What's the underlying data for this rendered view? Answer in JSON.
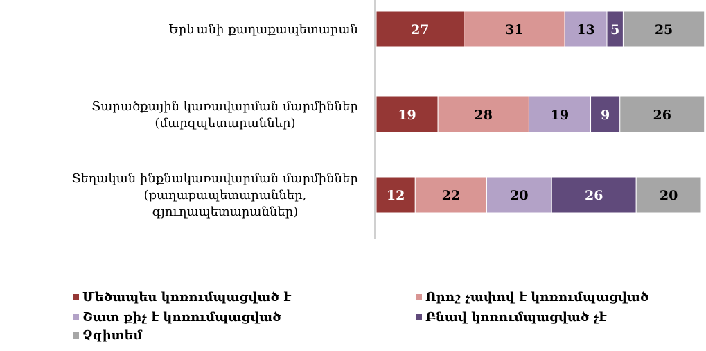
{
  "chart_data": {
    "type": "bar",
    "stacked": true,
    "percent": true,
    "orientation": "horizontal",
    "title": "",
    "xlabel": "",
    "ylabel": "",
    "xlim": [
      0,
      100
    ],
    "grid": false,
    "legend_position": "bottom",
    "categories": [
      [
        "Երևանի քաղաքապետարան"
      ],
      [
        "Տարածքային կառավարման մարմիններ",
        "(մարզպետարաններ)"
      ],
      [
        "Տեղական ինքնակառավարման մարմիններ",
        "(քաղաքապետարաններ,",
        "գյուղապետարաններ)"
      ]
    ],
    "series": [
      {
        "name": "Մեծապես կոռումպացված է",
        "color": "#953735",
        "label_color": "#ffffff",
        "values": [
          27,
          19,
          12
        ]
      },
      {
        "name": "Որոշ չափով է կոռումպացված",
        "color": "#d99694",
        "label_color": "#000000",
        "values": [
          31,
          28,
          22
        ]
      },
      {
        "name": "Շատ քիչ է կոռումպացված",
        "color": "#b3a2c7",
        "label_color": "#000000",
        "values": [
          13,
          19,
          20
        ]
      },
      {
        "name": "Բնավ կոռումպացված չէ",
        "color": "#604a7b",
        "label_color": "#ffffff",
        "values": [
          5,
          9,
          26
        ]
      },
      {
        "name": "Չգիտեմ",
        "color": "#a6a6a6",
        "label_color": "#000000",
        "values": [
          25,
          26,
          20
        ]
      }
    ]
  }
}
